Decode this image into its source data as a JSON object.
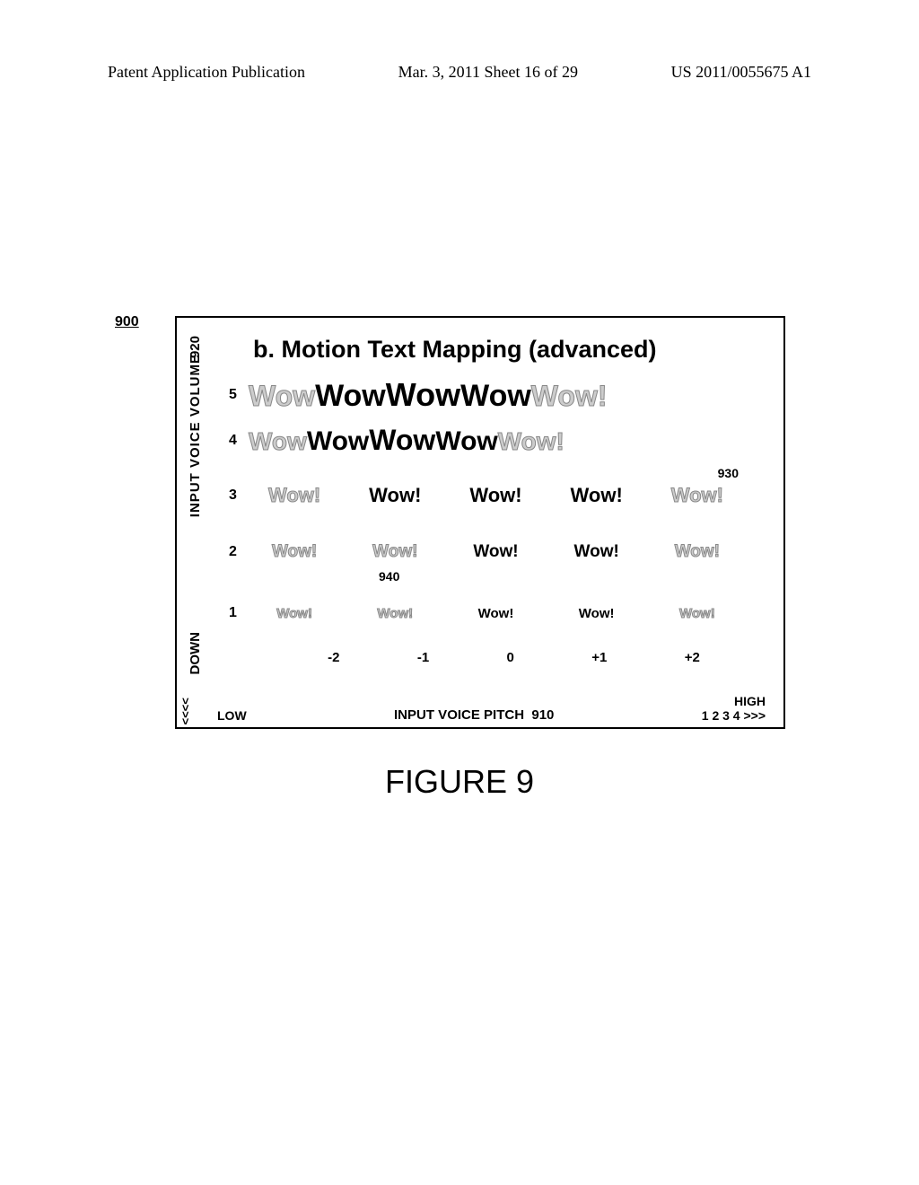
{
  "header": {
    "left": "Patent Application Publication",
    "mid": "Mar. 3, 2011  Sheet 16 of 29",
    "right": "US 2011/0055675 A1"
  },
  "figure_ref": "900",
  "diagram": {
    "title": "b. Motion Text Mapping (advanced)",
    "y_axis": {
      "label": "INPUT VOICE VOLUME",
      "ref": "920",
      "down_label": "DOWN",
      "arrows": "<<<<"
    },
    "x_axis": {
      "low_label": "LOW",
      "title": "INPUT VOICE PITCH",
      "ref": "910",
      "high_label": "HIGH",
      "high_nums": "1 2 3 4 >>>"
    },
    "rows": {
      "5": {
        "num": "5",
        "w1": "Wow",
        "w2": "Wow",
        "w3": "Wow",
        "w4": "Wow",
        "w5": "Wow!"
      },
      "4": {
        "num": "4",
        "w1": "Wow",
        "w2": "Wow",
        "w3": "Wow",
        "w4": "Wow",
        "w5": "Wow!"
      },
      "3": {
        "num": "3",
        "w1": "Wow!",
        "w2": "Wow!",
        "w3": "Wow!",
        "w4": "Wow!",
        "w5": "Wow!"
      },
      "2": {
        "num": "2",
        "w1": "Wow!",
        "w2": "Wow!",
        "w3": "Wow!",
        "w4": "Wow!",
        "w5": "Wow!"
      },
      "1": {
        "num": "1",
        "w1": "Wow!",
        "w2": "Wow!",
        "w3": "Wow!",
        "w4": "Wow!",
        "w5": "Wow!"
      }
    },
    "x_ticks": {
      "t1": "-2",
      "t2": "-1",
      "t3": "0",
      "t4": "+1",
      "t5": "+2"
    },
    "ref_930": "930",
    "ref_940": "940"
  },
  "caption": "FIGURE 9"
}
